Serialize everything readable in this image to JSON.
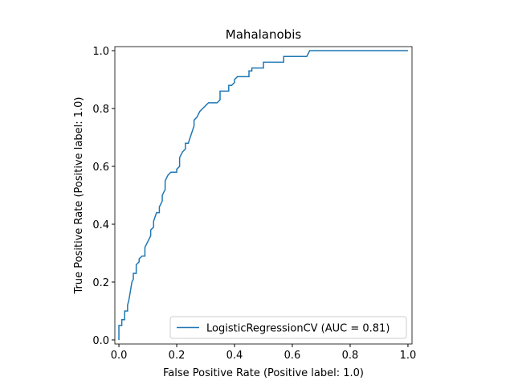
{
  "chart_data": {
    "type": "line",
    "title": "Mahalanobis",
    "x_label": "False Positive Rate (Positive label: 1.0)",
    "y_label": "True Positive Rate (Positive label: 1.0)",
    "xlim": [
      -0.014,
      1.014
    ],
    "ylim": [
      -0.014,
      1.014
    ],
    "xticks": [
      {
        "value": 0,
        "label": "0.0"
      },
      0.2,
      0.4,
      0.6,
      0.8,
      {
        "value": 1,
        "label": "1.0"
      }
    ],
    "yticks": [
      {
        "value": 0,
        "label": "0.0"
      },
      0.2,
      0.4,
      0.6,
      0.8,
      {
        "value": 1,
        "label": "1.0"
      }
    ],
    "legend": "lower right",
    "x": [
      0,
      0,
      0.01,
      0.01,
      0.02,
      0.02,
      0.03,
      0.03,
      0.035,
      0.04,
      0.045,
      0.05,
      0.05,
      0.06,
      0.06,
      0.07,
      0.07,
      0.08,
      0.09,
      0.09,
      0.1,
      0.11,
      0.11,
      0.12,
      0.12,
      0.13,
      0.14,
      0.14,
      0.15,
      0.15,
      0.16,
      0.16,
      0.17,
      0.18,
      0.2,
      0.2,
      0.21,
      0.21,
      0.22,
      0.23,
      0.23,
      0.24,
      0.25,
      0.26,
      0.26,
      0.27,
      0.28,
      0.29,
      0.3,
      0.31,
      0.34,
      0.35,
      0.35,
      0.38,
      0.38,
      0.39,
      0.4,
      0.4,
      0.41,
      0.45,
      0.45,
      0.46,
      0.46,
      0.5,
      0.5,
      0.57,
      0.57,
      0.65,
      0.66,
      1.0
    ],
    "series": [
      {
        "name": "LogisticRegressionCV (AUC = 0.81)",
        "color": "#1f77b4",
        "values": [
          0,
          0.05,
          0.05,
          0.07,
          0.07,
          0.1,
          0.1,
          0.12,
          0.14,
          0.17,
          0.2,
          0.21,
          0.23,
          0.23,
          0.26,
          0.27,
          0.28,
          0.29,
          0.29,
          0.32,
          0.34,
          0.36,
          0.38,
          0.39,
          0.41,
          0.44,
          0.44,
          0.46,
          0.48,
          0.5,
          0.52,
          0.55,
          0.57,
          0.58,
          0.58,
          0.59,
          0.6,
          0.63,
          0.65,
          0.66,
          0.68,
          0.68,
          0.71,
          0.74,
          0.76,
          0.77,
          0.79,
          0.8,
          0.81,
          0.82,
          0.82,
          0.83,
          0.86,
          0.86,
          0.88,
          0.88,
          0.89,
          0.9,
          0.91,
          0.91,
          0.93,
          0.93,
          0.94,
          0.94,
          0.96,
          0.96,
          0.98,
          0.98,
          1.0,
          1.0
        ]
      }
    ]
  }
}
